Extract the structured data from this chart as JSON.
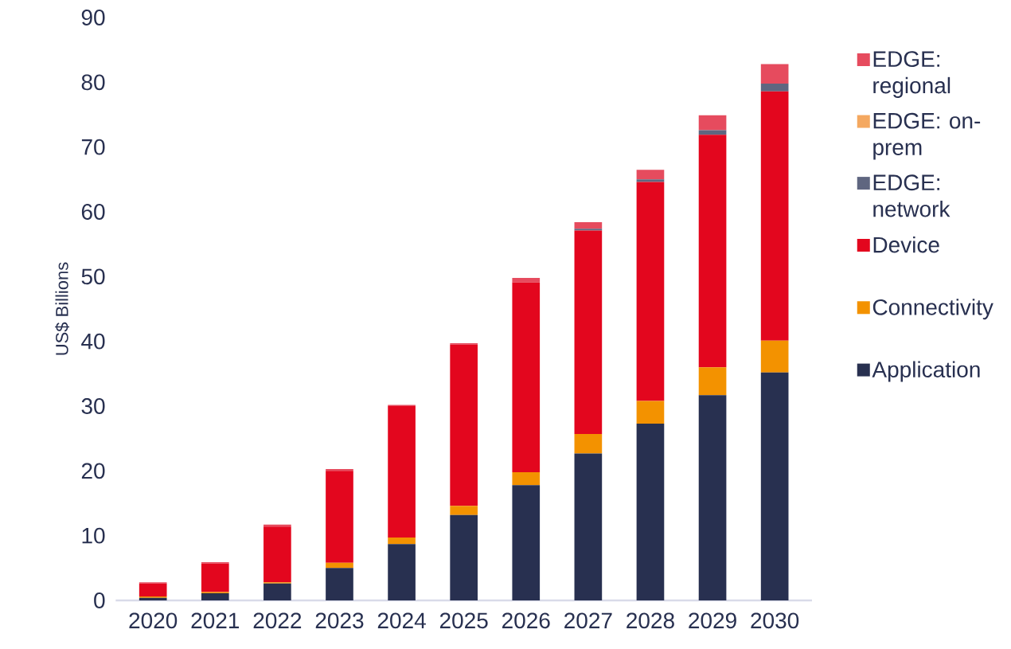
{
  "chart_data": {
    "type": "bar",
    "stacked": true,
    "ylabel": "US$ Billions",
    "legend": "right",
    "categories": [
      "2020",
      "2021",
      "2022",
      "2023",
      "2024",
      "2025",
      "2026",
      "2027",
      "2028",
      "2029",
      "2030"
    ],
    "ylim": [
      0,
      90
    ],
    "yticks": [
      0,
      10,
      20,
      30,
      40,
      50,
      60,
      70,
      80,
      90
    ],
    "series": [
      {
        "name": "Application",
        "color": "#283050",
        "values": [
          0.4,
          1.1,
          2.6,
          5.0,
          8.7,
          13.2,
          17.8,
          22.7,
          27.3,
          31.7,
          35.2
        ]
      },
      {
        "name": "Connectivity",
        "color": "#f39200",
        "values": [
          0.2,
          0.2,
          0.2,
          0.8,
          1.0,
          1.4,
          2.0,
          3.0,
          3.5,
          4.3,
          4.9
        ]
      },
      {
        "name": "Device",
        "color": "#e3061e",
        "values": [
          2.0,
          4.4,
          8.6,
          14.2,
          20.3,
          24.9,
          29.3,
          31.4,
          33.8,
          35.9,
          38.5
        ]
      },
      {
        "name": "EDGE: network",
        "color": "#5f6680",
        "values": [
          0,
          0,
          0,
          0,
          0,
          0,
          0,
          0.3,
          0.4,
          0.7,
          1.2
        ]
      },
      {
        "name": "EDGE: on-prem",
        "color": "#f4a860",
        "values": [
          0,
          0,
          0,
          0,
          0,
          0,
          0,
          0,
          0,
          0,
          0
        ]
      },
      {
        "name": "EDGE: regional",
        "color": "#e64b5e",
        "values": [
          0.2,
          0.2,
          0.3,
          0.3,
          0.2,
          0.2,
          0.7,
          1.0,
          1.5,
          2.3,
          3.0
        ]
      }
    ]
  }
}
